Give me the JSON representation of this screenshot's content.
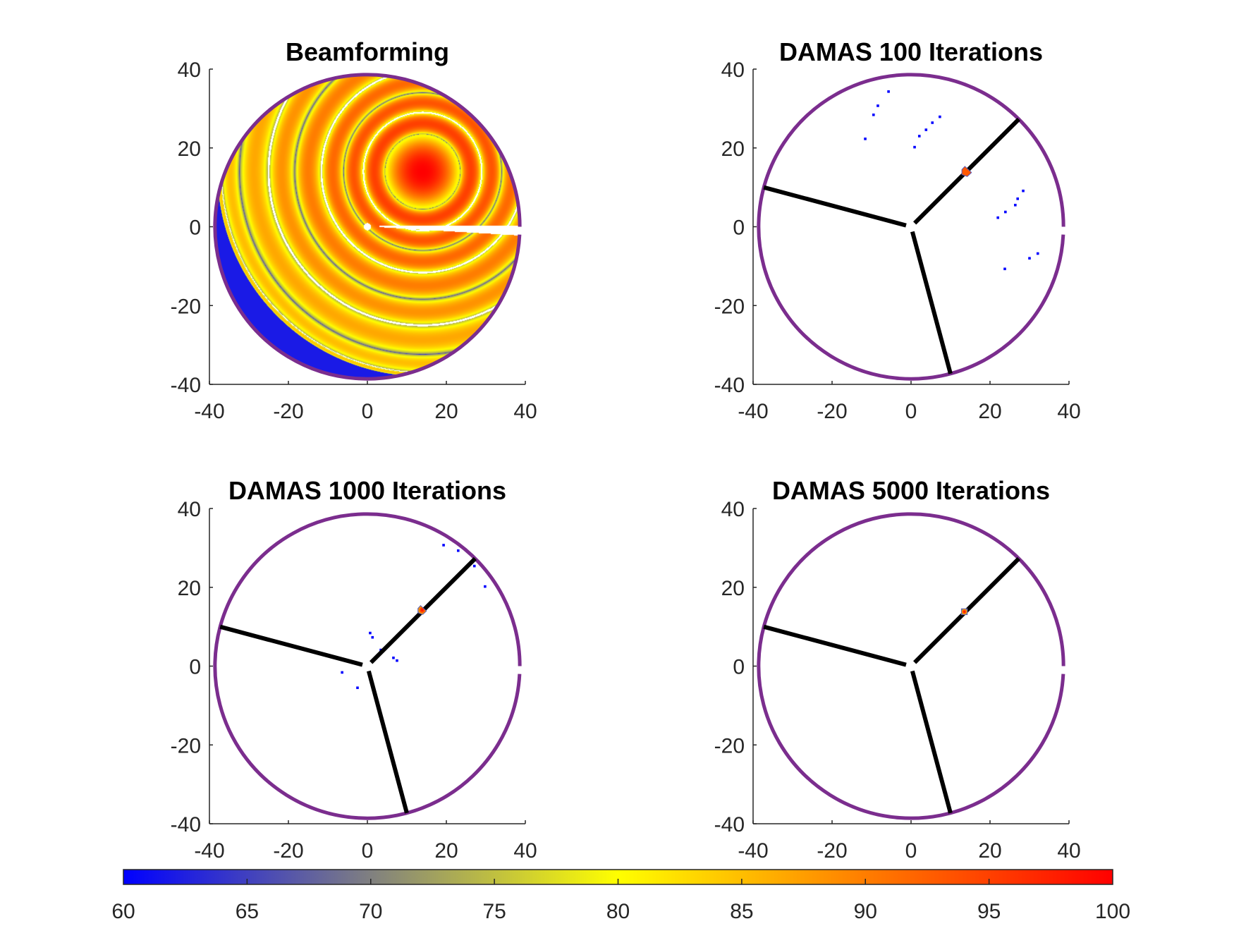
{
  "chart_data": [
    {
      "type": "heatmap",
      "id": "beamforming",
      "title": "Beamforming",
      "xlabel": "",
      "ylabel": "",
      "xlim": [
        -40,
        40
      ],
      "ylim": [
        -40,
        40
      ],
      "xticks": [
        "-40",
        "-20",
        "0",
        "20",
        "40"
      ],
      "yticks": [
        "-40",
        "-20",
        "0",
        "20",
        "40"
      ],
      "source": {
        "x": 14,
        "y": 14,
        "level": 100
      },
      "null_ring_radii": [
        9.5,
        15,
        20,
        25.6,
        32.4,
        39,
        46.4,
        51
      ],
      "outer_boundary_radius": 38.6,
      "sidelobe_level_range": [
        85,
        95
      ]
    },
    {
      "type": "scatter",
      "id": "damas-100",
      "title": "DAMAS  100 Iterations",
      "xlim": [
        -40,
        40
      ],
      "ylim": [
        -40,
        40
      ],
      "xticks": [
        "-40",
        "-20",
        "0",
        "20",
        "40"
      ],
      "yticks": [
        "-40",
        "-20",
        "0",
        "20",
        "40"
      ],
      "source": {
        "x": 14,
        "y": 14,
        "level": 93,
        "size": 2.5
      },
      "points": [
        {
          "x": -5.7,
          "y": 34.3
        },
        {
          "x": -8.4,
          "y": 30.7
        },
        {
          "x": -9.5,
          "y": 28.4
        },
        {
          "x": -11.6,
          "y": 22.3
        },
        {
          "x": 7.3,
          "y": 27.9
        },
        {
          "x": 5.4,
          "y": 26.4
        },
        {
          "x": 3.8,
          "y": 24.6
        },
        {
          "x": 2.1,
          "y": 23.0
        },
        {
          "x": 0.9,
          "y": 20.2
        },
        {
          "x": 28.4,
          "y": 9.1
        },
        {
          "x": 27.0,
          "y": 7.1
        },
        {
          "x": 26.4,
          "y": 5.5
        },
        {
          "x": 23.9,
          "y": 3.75
        },
        {
          "x": 22.0,
          "y": 2.3
        },
        {
          "x": 32.1,
          "y": -6.8
        },
        {
          "x": 30.0,
          "y": -8.0
        },
        {
          "x": 23.75,
          "y": -10.7
        }
      ],
      "points_level": 60
    },
    {
      "type": "scatter",
      "id": "damas-1000",
      "title": "DAMAS  1000 Iterations",
      "xlim": [
        -40,
        40
      ],
      "ylim": [
        -40,
        40
      ],
      "xticks": [
        "-40",
        "-20",
        "0",
        "20",
        "40"
      ],
      "yticks": [
        "-40",
        "-20",
        "0",
        "20",
        "40"
      ],
      "source": {
        "x": 13.8,
        "y": 14.2,
        "level": 97,
        "size": 2.2
      },
      "points": [
        {
          "x": 19.3,
          "y": 30.7
        },
        {
          "x": 23.0,
          "y": 29.3
        },
        {
          "x": 27.1,
          "y": 25.4
        },
        {
          "x": 29.8,
          "y": 20.2
        },
        {
          "x": 0.7,
          "y": 8.4
        },
        {
          "x": 1.3,
          "y": 7.3
        },
        {
          "x": 3.4,
          "y": 4.1
        },
        {
          "x": 6.6,
          "y": 2.1
        },
        {
          "x": 7.5,
          "y": 1.4
        },
        {
          "x": -6.4,
          "y": -1.6
        },
        {
          "x": -2.5,
          "y": -5.5
        }
      ],
      "points_level": 60
    },
    {
      "type": "scatter",
      "id": "damas-5000",
      "title": "DAMAS  5000 Iterations",
      "xlim": [
        -40,
        40
      ],
      "ylim": [
        -40,
        40
      ],
      "xticks": [
        "-40",
        "-20",
        "0",
        "20",
        "40"
      ],
      "yticks": [
        "-40",
        "-20",
        "0",
        "20",
        "40"
      ],
      "source": {
        "x": 13.5,
        "y": 13.8,
        "level": 100,
        "size": 1.5
      },
      "points": [],
      "points_level": 60
    }
  ],
  "overlay": {
    "ring_radius": 38.6,
    "ring_gap_y": [
      -2,
      0
    ],
    "ring_color": "#7b2d8e",
    "blades": [
      {
        "angle_deg": 45,
        "inner": 1.3,
        "outer": 38.6
      },
      {
        "angle_deg": 165,
        "inner": 1.3,
        "outer": 38.6
      },
      {
        "angle_deg": -75,
        "inner": 1.3,
        "outer": 38.6
      }
    ],
    "blade_color": "#000000"
  },
  "colorbar": {
    "limits": [
      60,
      100
    ],
    "ticks": [
      "60",
      "65",
      "70",
      "75",
      "80",
      "85",
      "90",
      "95",
      "100"
    ],
    "colormap": [
      {
        "v": 60,
        "color": "#0000ff"
      },
      {
        "v": 70,
        "color": "#808080"
      },
      {
        "v": 80,
        "color": "#ffff00"
      },
      {
        "v": 85,
        "color": "#ffbe00"
      },
      {
        "v": 90,
        "color": "#ff7d00"
      },
      {
        "v": 95,
        "color": "#ff4000"
      },
      {
        "v": 100,
        "color": "#ff0000"
      }
    ]
  }
}
